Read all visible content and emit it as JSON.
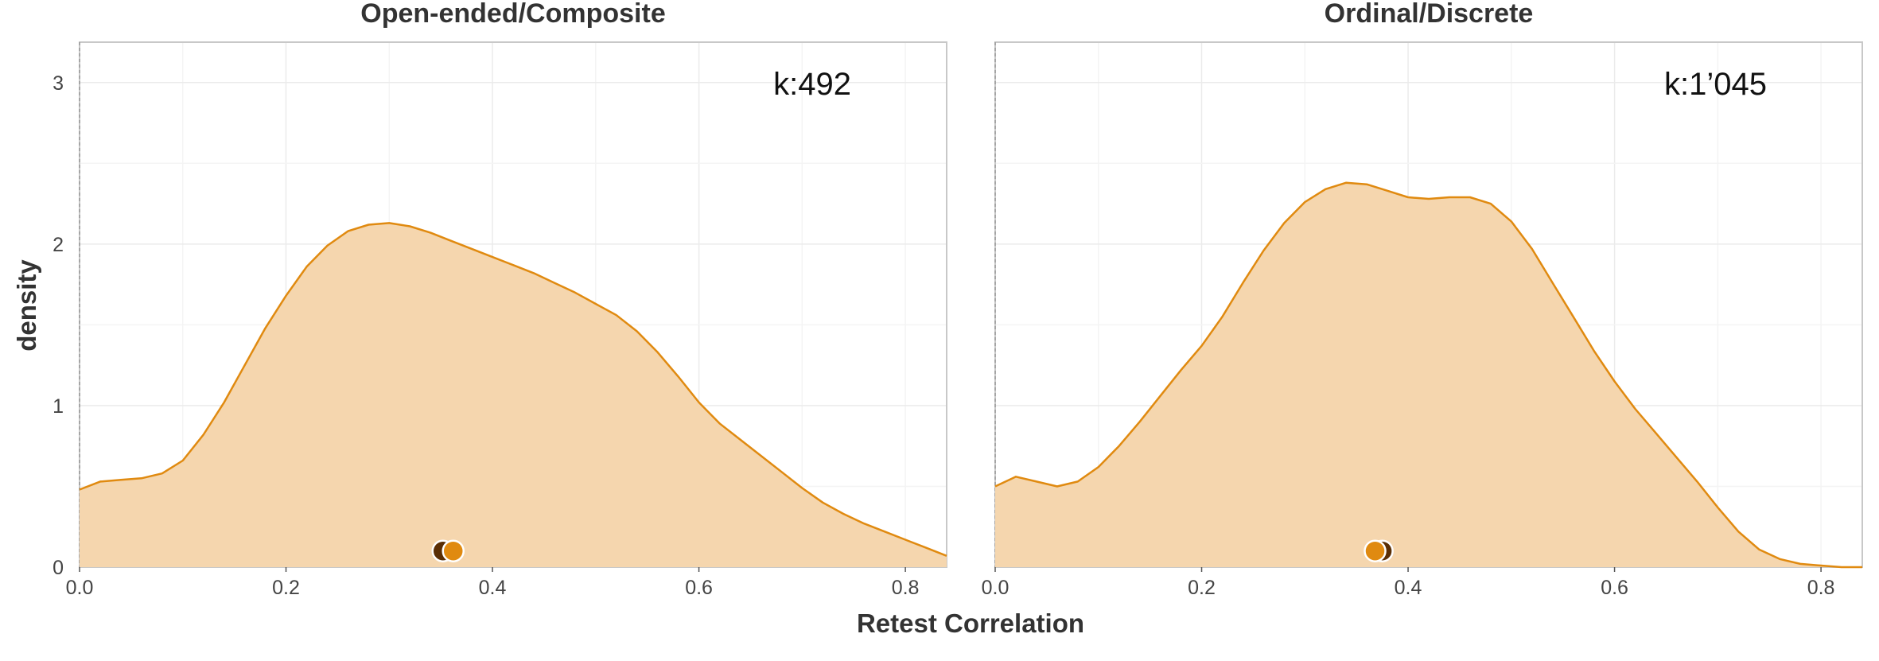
{
  "chart_data": {
    "type": "area",
    "xlabel": "Retest Correlation",
    "ylabel": "density",
    "xlim": [
      0,
      0.84
    ],
    "ylim": [
      0,
      3.25
    ],
    "x_ticks": [
      "0.0",
      "0.2",
      "0.4",
      "0.6",
      "0.8"
    ],
    "y_ticks": [
      "0",
      "1",
      "2",
      "3"
    ],
    "grid": true,
    "colors": {
      "fill": "#f5d6ae",
      "line": "#e08a10",
      "dot_dark": "#5a2e05",
      "dot_orange": "#e08a10"
    },
    "panels": [
      {
        "title": "Open-ended/Composite",
        "annotation": "k:492",
        "x": [
          0.0,
          0.02,
          0.04,
          0.06,
          0.08,
          0.1,
          0.12,
          0.14,
          0.16,
          0.18,
          0.2,
          0.22,
          0.24,
          0.26,
          0.28,
          0.3,
          0.32,
          0.34,
          0.36,
          0.38,
          0.4,
          0.42,
          0.44,
          0.46,
          0.48,
          0.5,
          0.52,
          0.54,
          0.56,
          0.58,
          0.6,
          0.62,
          0.64,
          0.66,
          0.68,
          0.7,
          0.72,
          0.74,
          0.76,
          0.78,
          0.8,
          0.82,
          0.84
        ],
        "density": [
          0.48,
          0.53,
          0.54,
          0.55,
          0.58,
          0.66,
          0.82,
          1.02,
          1.25,
          1.48,
          1.68,
          1.86,
          1.99,
          2.08,
          2.12,
          2.13,
          2.11,
          2.07,
          2.02,
          1.97,
          1.92,
          1.87,
          1.82,
          1.76,
          1.7,
          1.63,
          1.56,
          1.46,
          1.33,
          1.18,
          1.02,
          0.89,
          0.79,
          0.69,
          0.59,
          0.49,
          0.4,
          0.33,
          0.27,
          0.22,
          0.17,
          0.12,
          0.07
        ],
        "points": [
          {
            "x": 0.352,
            "y": 0.1,
            "color": "dark"
          },
          {
            "x": 0.362,
            "y": 0.1,
            "color": "orange"
          }
        ]
      },
      {
        "title": "Ordinal/Discrete",
        "annotation": "k:1’045",
        "x": [
          0.0,
          0.02,
          0.04,
          0.06,
          0.08,
          0.1,
          0.12,
          0.14,
          0.16,
          0.18,
          0.2,
          0.22,
          0.24,
          0.26,
          0.28,
          0.3,
          0.32,
          0.34,
          0.36,
          0.38,
          0.4,
          0.42,
          0.44,
          0.46,
          0.48,
          0.5,
          0.52,
          0.54,
          0.56,
          0.58,
          0.6,
          0.62,
          0.64,
          0.66,
          0.68,
          0.7,
          0.72,
          0.74,
          0.76,
          0.78,
          0.8,
          0.82,
          0.84
        ],
        "density": [
          0.5,
          0.56,
          0.53,
          0.5,
          0.53,
          0.62,
          0.75,
          0.9,
          1.06,
          1.22,
          1.37,
          1.55,
          1.76,
          1.96,
          2.13,
          2.26,
          2.34,
          2.38,
          2.37,
          2.33,
          2.29,
          2.28,
          2.29,
          2.29,
          2.25,
          2.14,
          1.97,
          1.76,
          1.55,
          1.34,
          1.15,
          0.98,
          0.83,
          0.68,
          0.53,
          0.37,
          0.22,
          0.11,
          0.05,
          0.02,
          0.01,
          0.0,
          0.0
        ],
        "points": [
          {
            "x": 0.375,
            "y": 0.1,
            "color": "dark"
          },
          {
            "x": 0.368,
            "y": 0.1,
            "color": "orange"
          }
        ]
      }
    ]
  }
}
